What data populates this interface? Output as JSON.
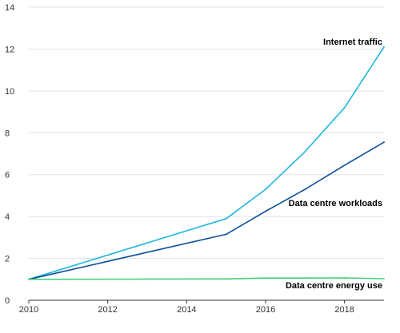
{
  "chart_data": {
    "type": "line",
    "title": "",
    "xlabel": "",
    "ylabel": "",
    "xlim": [
      2010,
      2019
    ],
    "ylim": [
      0,
      14
    ],
    "x_ticks": [
      2010,
      2012,
      2014,
      2016,
      2018
    ],
    "y_ticks": [
      0,
      2,
      4,
      6,
      8,
      10,
      12,
      14
    ],
    "grid": true,
    "legend": "direct labels at line ends",
    "series": [
      {
        "name": "Internet traffic",
        "color": "#1fb6e0",
        "x": [
          2010,
          2015,
          2016,
          2017,
          2018,
          2019
        ],
        "values": [
          1.0,
          3.9,
          5.3,
          7.1,
          9.2,
          12.1
        ]
      },
      {
        "name": "Data centre workloads",
        "color": "#0d4f9a",
        "x": [
          2010,
          2015,
          2016,
          2017,
          2018,
          2019
        ],
        "values": [
          1.0,
          3.15,
          4.25,
          5.3,
          6.45,
          7.55
        ]
      },
      {
        "name": "Data centre energy use",
        "color": "#3fd07a",
        "x": [
          2010,
          2015,
          2016,
          2017,
          2018,
          2019
        ],
        "values": [
          1.0,
          1.02,
          1.06,
          1.06,
          1.07,
          1.03
        ]
      }
    ]
  }
}
